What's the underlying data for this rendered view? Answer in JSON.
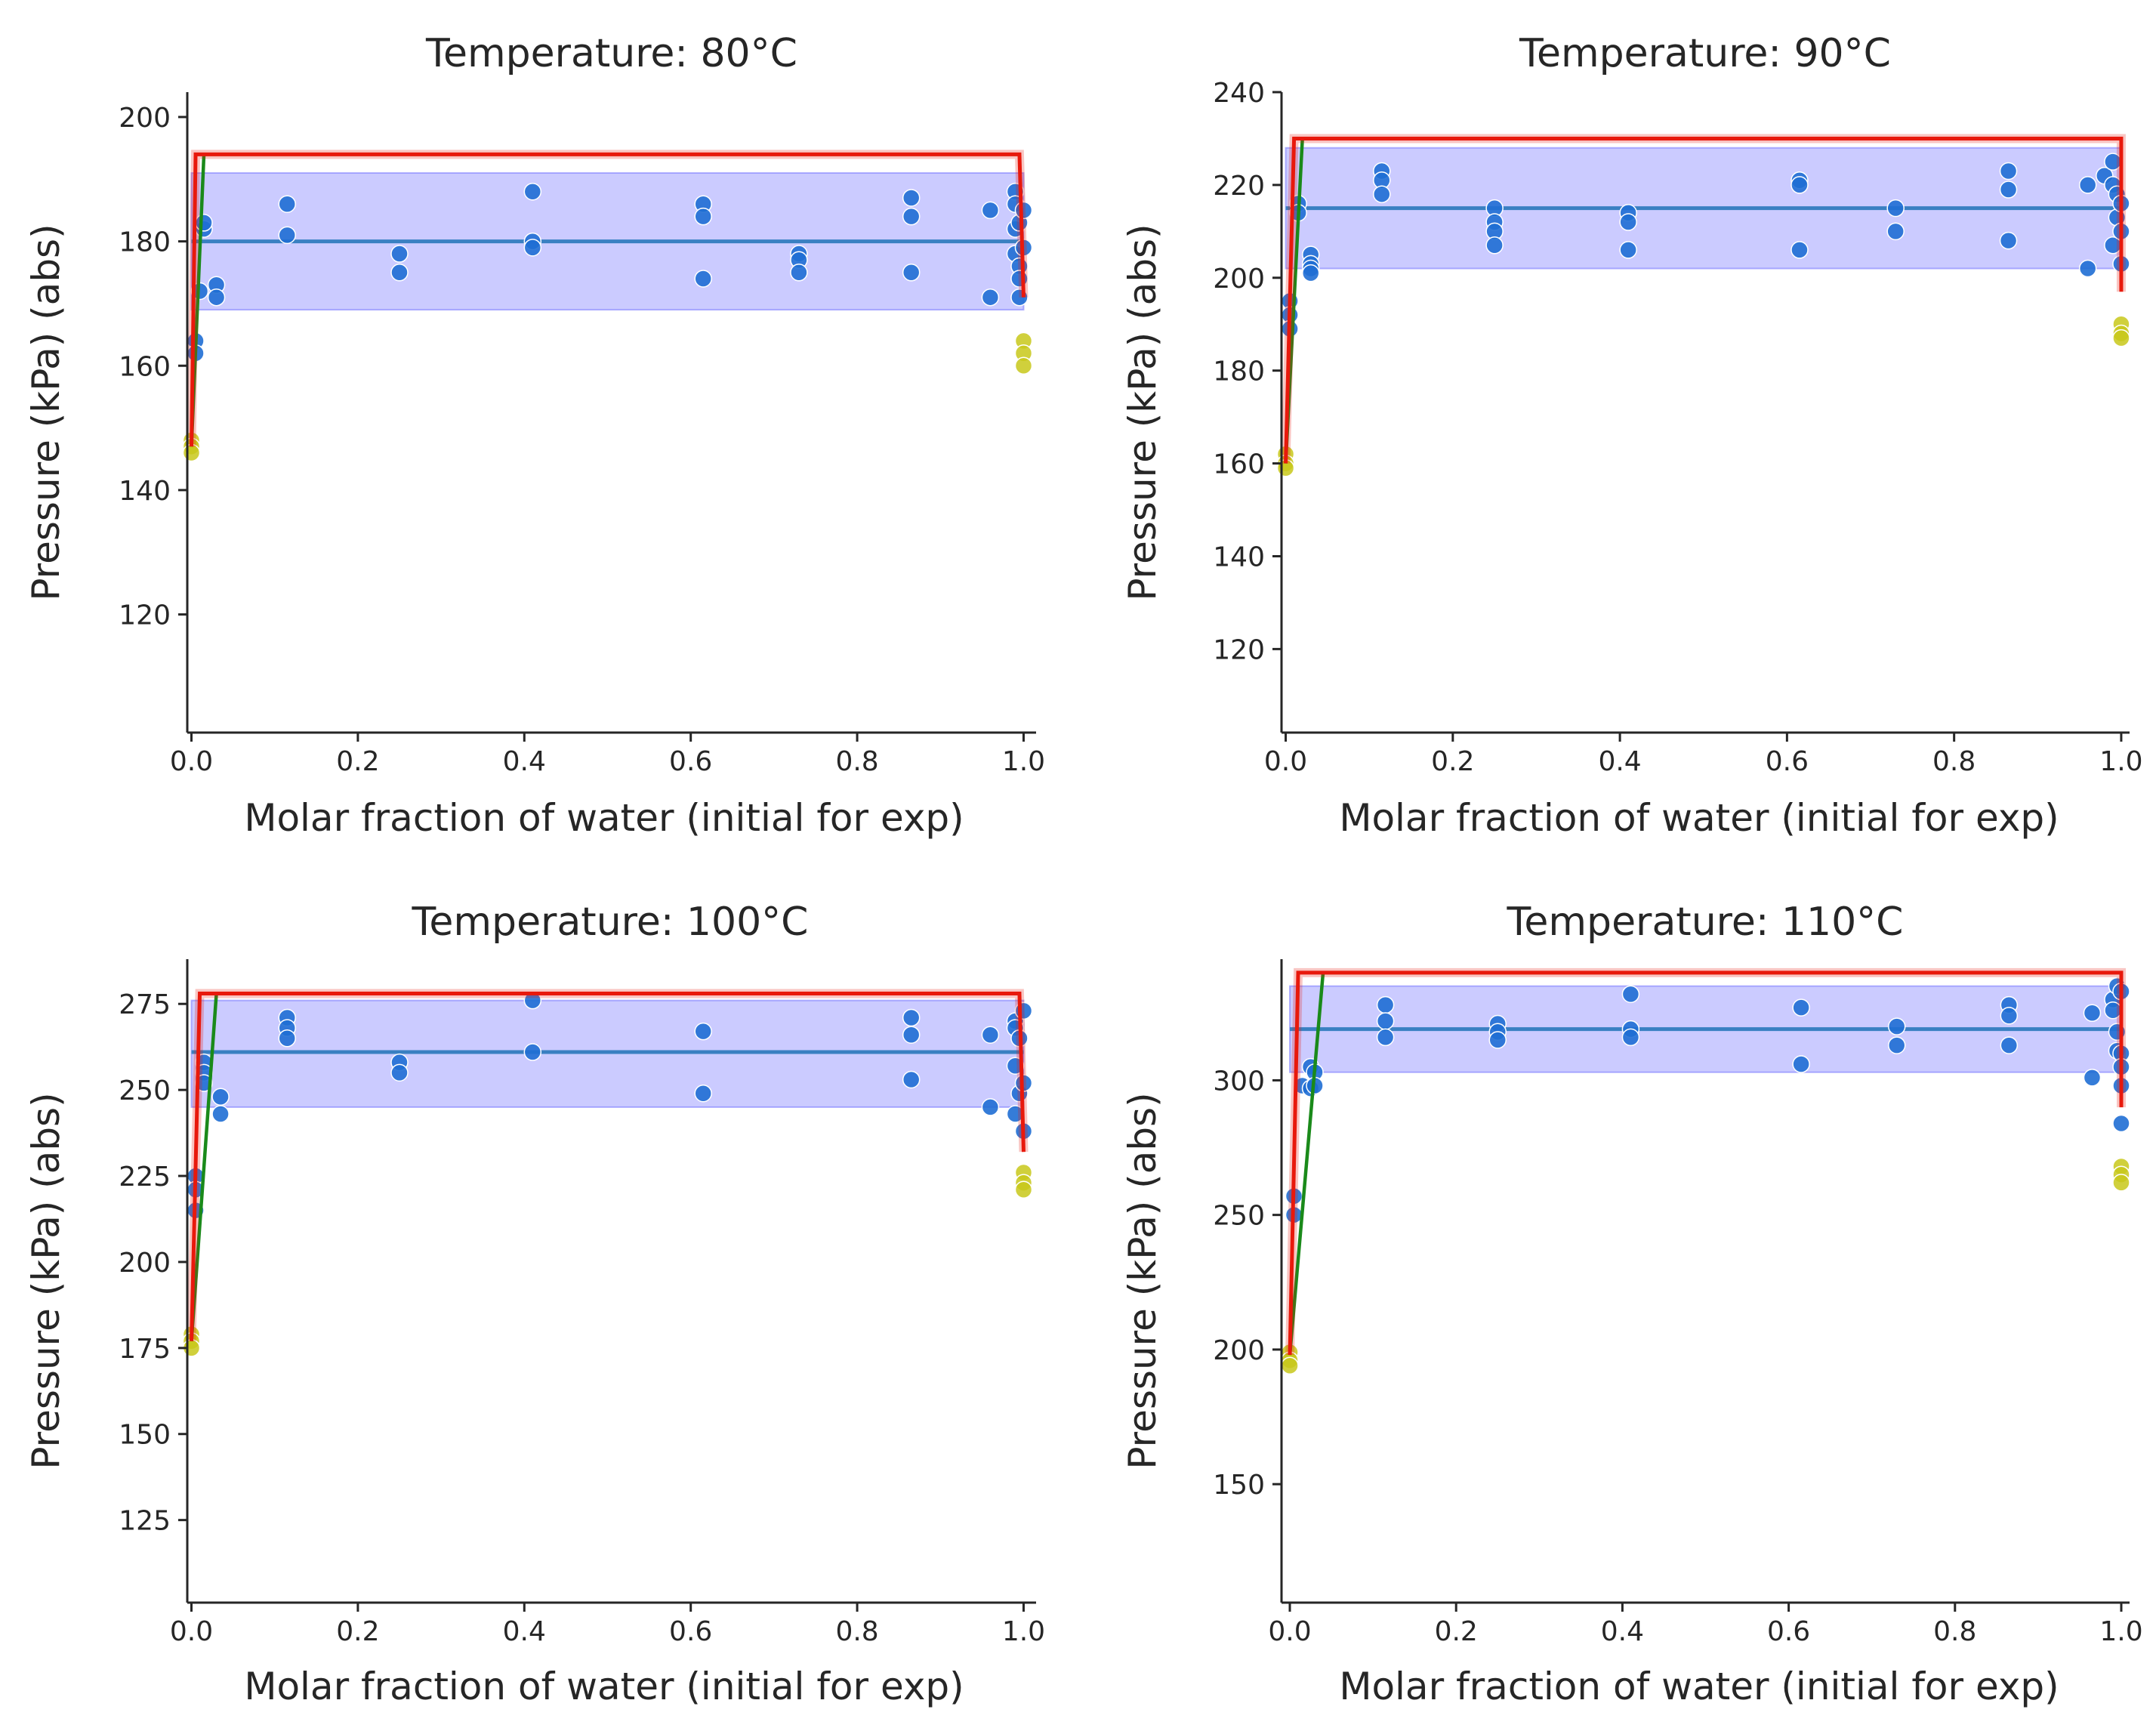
{
  "figure": {
    "type": "grid-of-charts",
    "rows": 2,
    "cols": 2
  },
  "colors": {
    "band": "#6b6bff",
    "mean_line": "#3a80c2",
    "exp_points": "#1f6ed4",
    "pure_points": "#c8c81a",
    "model_green": "#1a8a1a",
    "model_red": "#e8190c"
  },
  "chart_data": [
    {
      "type": "scatter",
      "title": "Temperature: 80°C",
      "xlabel": "Molar fraction of water (initial for exp)",
      "ylabel": "Pressure (kPa) (abs)",
      "xlim": [
        -0.005,
        1.015
      ],
      "ylim": [
        101,
        204
      ],
      "xticks": [
        0.0,
        0.2,
        0.4,
        0.6,
        0.8,
        1.0
      ],
      "xtick_labels": [
        "0.0",
        "0.2",
        "0.4",
        "0.6",
        "0.8",
        "1.0"
      ],
      "yticks": [
        120,
        140,
        160,
        180,
        200
      ],
      "ytick_labels": [
        "120",
        "140",
        "160",
        "180",
        "200"
      ],
      "band": {
        "x": [
          0.0,
          1.0
        ],
        "low": 169,
        "high": 191
      },
      "mean_line": {
        "x": [
          0.0,
          1.0
        ],
        "y": 180
      },
      "red_line": {
        "x": [
          0.0,
          0.005,
          0.995,
          1.0
        ],
        "y": [
          147,
          194,
          194,
          171
        ]
      },
      "green_line": {
        "x": [
          0.0,
          0.015,
          0.995
        ],
        "y": [
          147,
          194,
          194
        ]
      },
      "exp_points": {
        "x": [
          0.005,
          0.005,
          0.01,
          0.015,
          0.015,
          0.03,
          0.03,
          0.115,
          0.115,
          0.25,
          0.25,
          0.41,
          0.41,
          0.41,
          0.615,
          0.615,
          0.615,
          0.73,
          0.73,
          0.73,
          0.865,
          0.865,
          0.865,
          0.96,
          0.96,
          0.99,
          0.99,
          0.99,
          0.99,
          0.995,
          0.995,
          0.995,
          0.995,
          1.0,
          1.0
        ],
        "y": [
          164,
          162,
          172,
          182,
          183,
          173,
          171,
          186,
          181,
          178,
          175,
          188,
          180,
          179,
          186,
          184,
          174,
          178,
          177,
          175,
          187,
          184,
          175,
          185,
          171,
          188,
          186,
          182,
          178,
          183,
          176,
          174,
          171,
          185,
          179
        ]
      },
      "pure_points": {
        "x": [
          0.0,
          0.0,
          0.0,
          1.0,
          1.0,
          1.0
        ],
        "y": [
          148,
          147,
          146,
          164,
          162,
          160
        ]
      }
    },
    {
      "type": "scatter",
      "title": "Temperature: 90°C",
      "xlabel": "Molar fraction of water (initial for exp)",
      "ylabel": "Pressure (kPa) (abs)",
      "xlim": [
        -0.005,
        1.01
      ],
      "ylim": [
        102,
        240
      ],
      "xticks": [
        0.0,
        0.2,
        0.4,
        0.6,
        0.8,
        1.0
      ],
      "xtick_labels": [
        "0.0",
        "0.2",
        "0.4",
        "0.6",
        "0.8",
        "1.0"
      ],
      "yticks": [
        120,
        140,
        160,
        180,
        200,
        220,
        240
      ],
      "ytick_labels": [
        "120",
        "140",
        "160",
        "180",
        "200",
        "220",
        "240"
      ],
      "band": {
        "x": [
          0.0,
          1.0
        ],
        "low": 202,
        "high": 228
      },
      "mean_line": {
        "x": [
          0.0,
          1.0
        ],
        "y": 215
      },
      "red_line": {
        "x": [
          0.0,
          0.01,
          1.0,
          1.0
        ],
        "y": [
          160,
          230,
          230,
          197
        ]
      },
      "green_line": {
        "x": [
          0.0,
          0.02,
          1.0
        ],
        "y": [
          160,
          230,
          230
        ]
      },
      "exp_points": {
        "x": [
          0.005,
          0.005,
          0.005,
          0.015,
          0.015,
          0.03,
          0.03,
          0.03,
          0.03,
          0.115,
          0.115,
          0.115,
          0.25,
          0.25,
          0.25,
          0.25,
          0.41,
          0.41,
          0.41,
          0.615,
          0.615,
          0.615,
          0.73,
          0.73,
          0.865,
          0.865,
          0.865,
          0.96,
          0.96,
          0.98,
          0.99,
          0.99,
          0.99,
          0.995,
          0.995,
          1.0,
          1.0,
          1.0
        ],
        "y": [
          195,
          192,
          189,
          216,
          214,
          205,
          203,
          202,
          201,
          223,
          221,
          218,
          215,
          212,
          210,
          207,
          214,
          212,
          206,
          221,
          220,
          206,
          215,
          210,
          223,
          219,
          208,
          220,
          202,
          222,
          225,
          220,
          207,
          218,
          213,
          216,
          210,
          203
        ]
      },
      "pure_points": {
        "x": [
          0.0,
          0.0,
          0.0,
          1.0,
          1.0,
          1.0
        ],
        "y": [
          162,
          160,
          159,
          190,
          188,
          187
        ]
      }
    },
    {
      "type": "scatter",
      "title": "Temperature: 100°C",
      "xlabel": "Molar fraction of water (initial for exp)",
      "ylabel": "Pressure (kPa) (abs)",
      "xlim": [
        -0.005,
        1.015
      ],
      "ylim": [
        101,
        288
      ],
      "xticks": [
        0.0,
        0.2,
        0.4,
        0.6,
        0.8,
        1.0
      ],
      "xtick_labels": [
        "0.0",
        "0.2",
        "0.4",
        "0.6",
        "0.8",
        "1.0"
      ],
      "yticks": [
        125,
        150,
        175,
        200,
        225,
        250,
        275
      ],
      "ytick_labels": [
        "125",
        "150",
        "175",
        "200",
        "225",
        "250",
        "275"
      ],
      "band": {
        "x": [
          0.0,
          1.0
        ],
        "low": 245,
        "high": 276
      },
      "mean_line": {
        "x": [
          0.0,
          1.0
        ],
        "y": 261
      },
      "red_line": {
        "x": [
          0.0,
          0.01,
          0.995,
          1.0
        ],
        "y": [
          177,
          278,
          278,
          232
        ]
      },
      "green_line": {
        "x": [
          0.0,
          0.03,
          0.995
        ],
        "y": [
          177,
          278,
          278
        ]
      },
      "exp_points": {
        "x": [
          0.005,
          0.005,
          0.005,
          0.015,
          0.015,
          0.015,
          0.035,
          0.035,
          0.115,
          0.115,
          0.115,
          0.25,
          0.25,
          0.41,
          0.41,
          0.615,
          0.615,
          0.865,
          0.865,
          0.865,
          0.96,
          0.96,
          0.99,
          0.99,
          0.99,
          0.99,
          0.995,
          0.995,
          1.0,
          1.0,
          1.0
        ],
        "y": [
          225,
          221,
          215,
          258,
          255,
          252,
          248,
          243,
          271,
          268,
          265,
          258,
          255,
          276,
          261,
          267,
          249,
          271,
          266,
          253,
          266,
          245,
          270,
          268,
          257,
          243,
          265,
          249,
          273,
          252,
          238
        ]
      },
      "pure_points": {
        "x": [
          0.0,
          0.0,
          0.0,
          1.0,
          1.0,
          1.0
        ],
        "y": [
          179,
          177,
          175,
          226,
          223,
          221
        ]
      }
    },
    {
      "type": "scatter",
      "title": "Temperature: 110°C",
      "xlabel": "Molar fraction of water (initial for exp)",
      "ylabel": "Pressure (kPa) (abs)",
      "xlim": [
        -0.01,
        1.01
      ],
      "ylim": [
        106,
        345
      ],
      "xticks": [
        0.0,
        0.2,
        0.4,
        0.6,
        0.8,
        1.0
      ],
      "xtick_labels": [
        "0.0",
        "0.2",
        "0.4",
        "0.6",
        "0.8",
        "1.0"
      ],
      "yticks": [
        150,
        200,
        250,
        300
      ],
      "ytick_labels": [
        "150",
        "200",
        "250",
        "300"
      ],
      "band": {
        "x": [
          0.0,
          1.0
        ],
        "low": 303,
        "high": 335
      },
      "mean_line": {
        "x": [
          0.0,
          1.0
        ],
        "y": 319
      },
      "red_line": {
        "x": [
          0.0,
          0.01,
          1.0,
          1.0
        ],
        "y": [
          198,
          340,
          340,
          290
        ]
      },
      "green_line": {
        "x": [
          0.0,
          0.04,
          1.0
        ],
        "y": [
          198,
          340,
          340
        ]
      },
      "exp_points": {
        "x": [
          0.005,
          0.005,
          0.015,
          0.025,
          0.025,
          0.03,
          0.03,
          0.115,
          0.115,
          0.115,
          0.25,
          0.25,
          0.25,
          0.41,
          0.41,
          0.41,
          0.615,
          0.615,
          0.73,
          0.73,
          0.865,
          0.865,
          0.865,
          0.965,
          0.965,
          0.99,
          0.99,
          0.995,
          0.995,
          0.995,
          1.0,
          1.0,
          1.0,
          1.0,
          1.0
        ],
        "y": [
          257,
          250,
          298,
          305,
          297,
          303,
          298,
          328,
          322,
          316,
          321,
          318,
          315,
          332,
          319,
          316,
          327,
          306,
          320,
          313,
          328,
          324,
          313,
          325,
          301,
          330,
          326,
          335,
          318,
          311,
          333,
          310,
          305,
          298,
          284
        ]
      },
      "pure_points": {
        "x": [
          0.0,
          0.0,
          0.0,
          1.0,
          1.0,
          1.0
        ],
        "y": [
          199,
          196,
          194,
          268,
          265,
          262
        ]
      }
    }
  ]
}
